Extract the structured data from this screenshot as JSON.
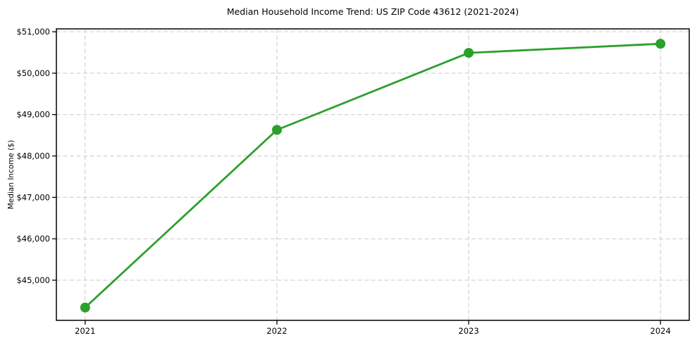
{
  "chart_data": {
    "type": "line",
    "title": "Median Household Income Trend: US ZIP Code 43612 (2021-2024)",
    "xlabel": "",
    "ylabel": "Median Income ($)",
    "x": [
      2021,
      2022,
      2023,
      2024
    ],
    "x_tick_labels": [
      "2021",
      "2022",
      "2023",
      "2024"
    ],
    "y_ticks": [
      45000,
      46000,
      47000,
      48000,
      49000,
      50000,
      51000
    ],
    "y_tick_labels": [
      "$45,000",
      "$46,000",
      "$47,000",
      "$48,000",
      "$49,000",
      "$50,000",
      "$51,000"
    ],
    "xlim": [
      2020.85,
      2024.15
    ],
    "ylim": [
      44030,
      51070
    ],
    "grid": true,
    "grid_style": "dashed",
    "legend": false,
    "series": [
      {
        "name": "Median Income",
        "values": [
          44340,
          48630,
          50490,
          50710
        ],
        "color": "#2ca02c",
        "marker": "circle",
        "line_width": 2.8,
        "marker_radius": 7
      }
    ],
    "colors": {
      "grid": "#cfcfcf",
      "spine": "#000000",
      "text": "#000000",
      "background": "#ffffff"
    }
  }
}
